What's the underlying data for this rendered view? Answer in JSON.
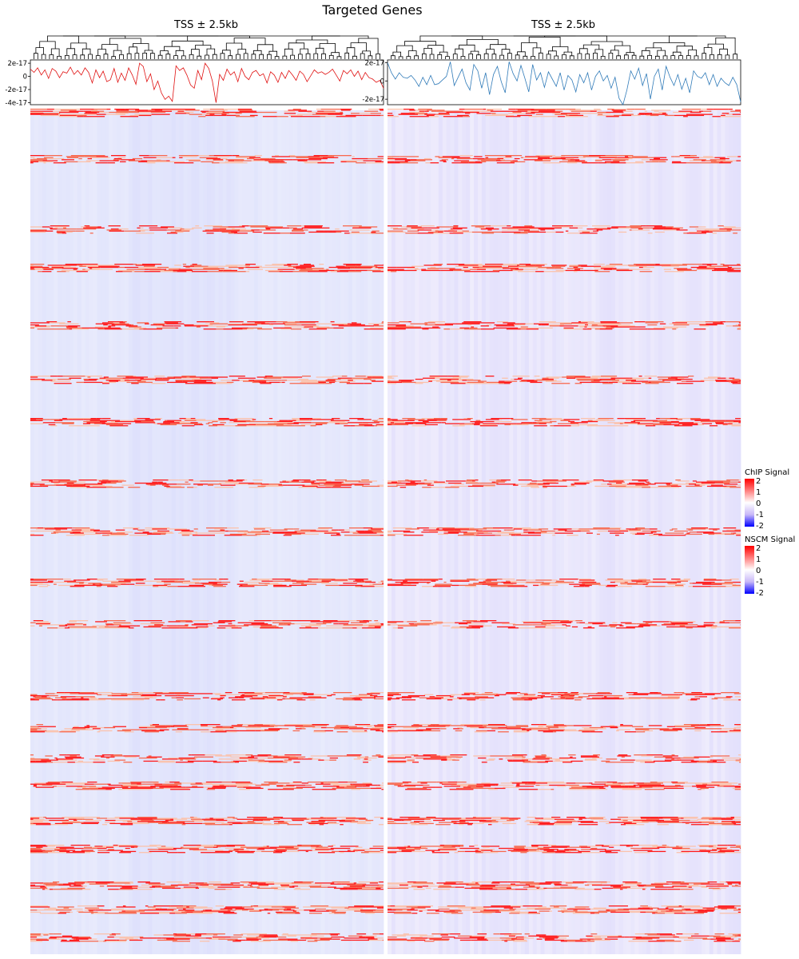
{
  "title": "Targeted Genes",
  "panels": [
    {
      "label": "TSS ± 2.5kb",
      "line_color": "#e01010",
      "yticks": [
        "2e-17",
        "0",
        "-2e-17",
        "-4e-17"
      ],
      "yvals": [
        2,
        0,
        -2,
        -4
      ],
      "ylim": [
        -4.3,
        2.5
      ]
    },
    {
      "label": "TSS ± 2.5kb",
      "line_color": "#2f7ab8",
      "yticks": [
        "2e-17",
        "0",
        "-2e-17"
      ],
      "yvals": [
        2,
        0,
        -2
      ],
      "ylim": [
        -2.6,
        2.3
      ]
    }
  ],
  "legends": [
    {
      "title": "ChIP Signal",
      "ticks": [
        "2",
        "1",
        "0",
        "-1",
        "-2"
      ]
    },
    {
      "title": "NSCM Signal",
      "ticks": [
        "2",
        "1",
        "0",
        "-1",
        "-2"
      ]
    }
  ],
  "colors": {
    "high": "#ff0000",
    "mid": "#ffffff",
    "low": "#0000ff",
    "background": "#ece4fb"
  },
  "chart_data": [
    {
      "type": "line",
      "title": "Targeted Genes",
      "subtitle": "TSS ± 2.5kb",
      "scale": "1e-17",
      "ylim": [
        -4.3,
        2.5
      ],
      "values": [
        1.1,
        0.6,
        1.3,
        0.2,
        1.0,
        -0.3,
        1.2,
        0.8,
        -0.2,
        0.7,
        0.5,
        1.4,
        0.3,
        0.9,
        0.2,
        1.3,
        0.6,
        -1.0,
        1.0,
        -0.2,
        0.8,
        -0.8,
        -0.5,
        1.2,
        -0.9,
        0.5,
        -0.6,
        1.3,
        0.2,
        -1.2,
        2.0,
        1.5,
        -0.8,
        0.4,
        -2.0,
        -0.7,
        -2.5,
        -3.5,
        -3.0,
        -3.8,
        1.6,
        0.9,
        1.3,
        0.2,
        -1.3,
        -1.8,
        0.9,
        -0.5,
        2.0,
        1.2,
        -0.7,
        -4.0,
        0.3,
        -0.6,
        1.1,
        0.2,
        0.7,
        -0.8,
        1.2,
        0.0,
        -0.5,
        0.6,
        0.9,
        0.1,
        0.4,
        -1.0,
        0.7,
        0.2,
        -0.9,
        0.6,
        -0.3,
        0.9,
        0.2,
        -0.6,
        0.8,
        0.3,
        -0.8,
        0.1,
        1.0,
        0.5,
        0.7,
        0.3,
        0.6,
        1.1,
        0.2,
        -0.7,
        0.9,
        0.4,
        1.0,
        0.0,
        0.8,
        -0.5,
        0.6,
        -0.2,
        -0.4,
        -0.9,
        -0.6,
        -1.8
      ]
    },
    {
      "type": "line",
      "subtitle": "TSS ± 2.5kb",
      "scale": "1e-17",
      "ylim": [
        -2.6,
        2.3
      ],
      "values": [
        2.0,
        0.9,
        0.2,
        0.9,
        0.4,
        0.3,
        0.6,
        0.1,
        -0.6,
        0.4,
        -0.4,
        0.6,
        -0.4,
        -0.3,
        0.1,
        0.5,
        2.1,
        -0.5,
        0.4,
        1.3,
        -0.2,
        -1.0,
        1.8,
        1.1,
        -0.8,
        0.9,
        -1.5,
        0.7,
        1.6,
        -0.1,
        -1.3,
        2.1,
        0.8,
        0.0,
        1.7,
        0.3,
        -1.2,
        1.8,
        0.1,
        0.9,
        -0.7,
        1.0,
        0.2,
        -0.6,
        0.9,
        -1.0,
        0.6,
        0.1,
        -1.2,
        0.7,
        -0.2,
        0.9,
        -1.0,
        0.5,
        1.1,
        0.0,
        0.6,
        -0.8,
        0.4,
        -1.9,
        -2.6,
        -1.0,
        1.1,
        0.2,
        1.4,
        -0.5,
        0.8,
        -2.0,
        0.5,
        1.3,
        -1.0,
        1.6,
        0.4,
        -0.5,
        0.7,
        -0.9,
        0.3,
        -1.3,
        1.1,
        0.5,
        0.3,
        0.9,
        -0.4,
        0.7,
        -0.6,
        0.3,
        -0.2,
        -0.5,
        0.4,
        -0.4,
        -2.3
      ]
    }
  ]
}
